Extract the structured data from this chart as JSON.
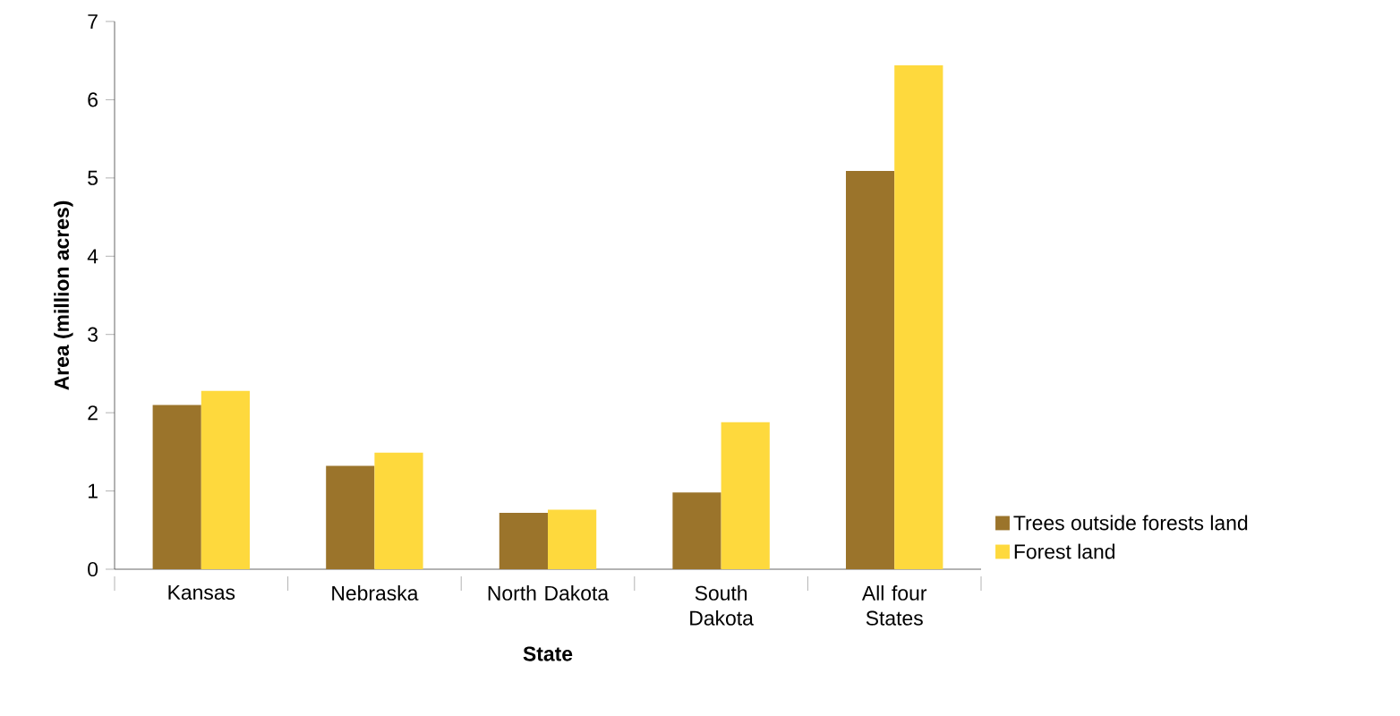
{
  "chart_data": {
    "type": "bar",
    "xlabel": "State",
    "ylabel": "Area (million acres)",
    "categories": [
      "Kansas",
      "Nebraska",
      "North Dakota",
      "South Dakota",
      "All four States"
    ],
    "series": [
      {
        "name": "Trees outside forests land",
        "color": "#9b742b",
        "values": [
          2.1,
          1.32,
          0.72,
          0.98,
          5.09
        ]
      },
      {
        "name": "Forest land",
        "color": "#fed93d",
        "values": [
          2.28,
          1.49,
          0.76,
          1.88,
          6.44
        ]
      }
    ],
    "ylim": [
      0,
      7
    ],
    "yticks": [
      0,
      1,
      2,
      3,
      4,
      5,
      6,
      7
    ],
    "grid": false,
    "legend": "bottom right"
  }
}
